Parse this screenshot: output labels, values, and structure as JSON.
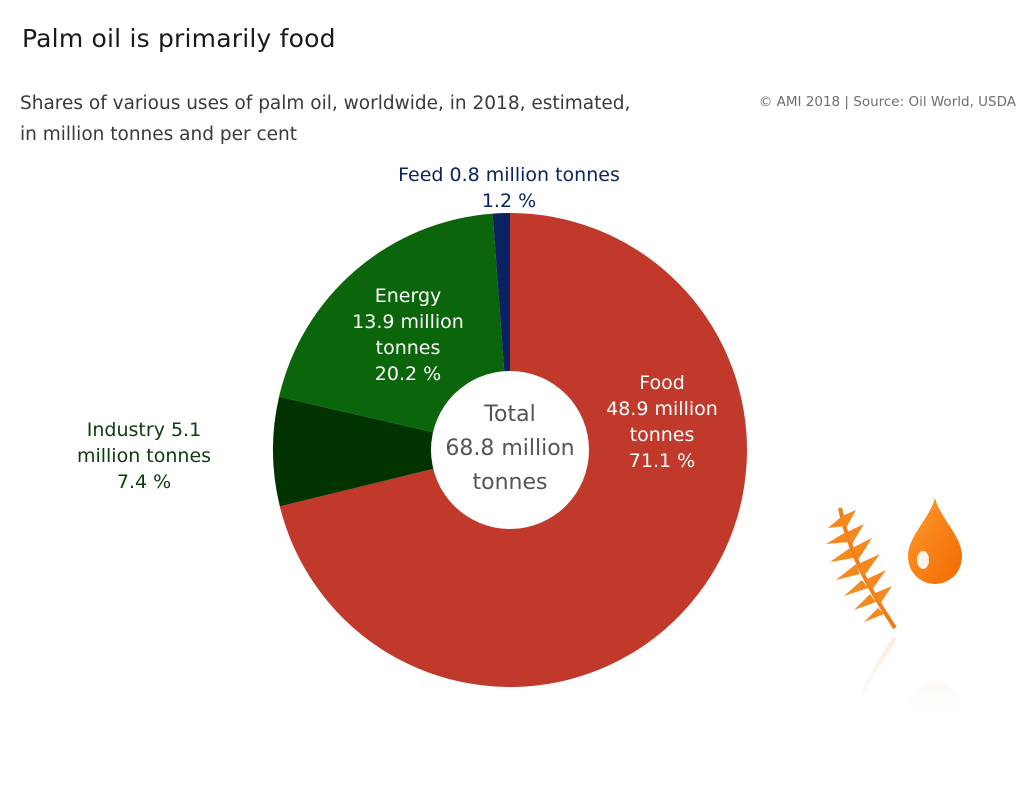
{
  "title": "Palm oil is primarily food",
  "subtitle_lines": [
    "Shares of various uses of palm oil, worldwide, in 2018, estimated,",
    "in million tonnes and per cent"
  ],
  "source": "© AMI 2018 | Source: Oil World, USDA",
  "chart_data": {
    "type": "pie",
    "title": "Palm oil is primarily food",
    "subtitle": "Shares of various uses of palm oil, worldwide, in 2018, estimated, in million tonnes and per cent",
    "unit": "million tonnes",
    "total_label": [
      "Total",
      "68.8 million",
      "tonnes"
    ],
    "total_value": 68.8,
    "slices": [
      {
        "name": "Food",
        "value": 48.9,
        "percent": 71.1,
        "color": "#c0392b",
        "label": [
          "Food",
          "48.9 million",
          "tonnes",
          "71.1 %"
        ],
        "label_color": "#ffffff"
      },
      {
        "name": "Industry",
        "value": 5.1,
        "percent": 7.4,
        "color": "#003300",
        "label": [
          "Industry 5.1",
          "million tonnes",
          "7.4 %"
        ],
        "label_color": "#0d3b0d"
      },
      {
        "name": "Energy",
        "value": 13.9,
        "percent": 20.2,
        "color": "#0b660b",
        "label": [
          "Energy",
          "13.9 million",
          "tonnes",
          "20.2 %"
        ],
        "label_color": "#ffffff"
      },
      {
        "name": "Feed",
        "value": 0.8,
        "percent": 1.2,
        "color": "#0b2262",
        "label": [
          "Feed 0.8 million tonnes",
          "1.2 %"
        ],
        "label_color": "#0b2262"
      }
    ]
  }
}
